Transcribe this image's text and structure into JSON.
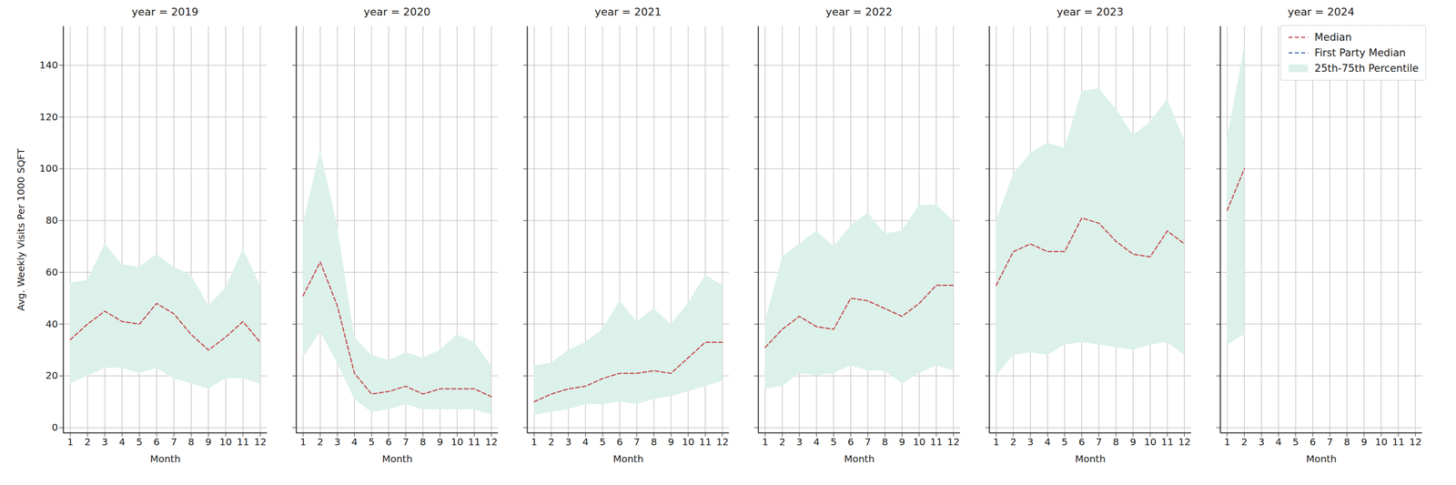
{
  "chart_data": [
    {
      "type": "line",
      "title": "year = 2019",
      "xlabel": "Month",
      "ylabel": "Avg. Weekly Visits Per 1000 SQFT",
      "x": [
        1,
        2,
        3,
        4,
        5,
        6,
        7,
        8,
        9,
        10,
        11,
        12
      ],
      "xlim": [
        0.6,
        12.4
      ],
      "xticks": [
        1,
        2,
        3,
        4,
        5,
        6,
        7,
        8,
        9,
        10,
        11,
        12
      ],
      "ylim": [
        -2,
        155
      ],
      "yticks": [
        0,
        20,
        40,
        60,
        80,
        100,
        120,
        140
      ],
      "grid": true,
      "series": [
        {
          "name": "Median",
          "color": "#c44e52",
          "line_style": "dashed",
          "values": [
            34,
            40,
            45,
            41,
            40,
            48,
            44,
            36,
            30,
            35,
            41,
            33
          ]
        },
        {
          "name": "First Party Median",
          "color": "#4c72b0",
          "line_style": "dashed",
          "values": [
            null,
            null,
            null,
            null,
            null,
            null,
            null,
            null,
            null,
            null,
            null,
            null
          ]
        },
        {
          "name": "25th-75th Percentile",
          "type": "area",
          "color": "#dcf1ea",
          "lower": [
            17,
            20,
            23,
            23,
            21,
            23,
            19,
            17,
            15,
            19,
            19,
            17
          ],
          "upper": [
            56,
            57,
            71,
            63,
            62,
            67,
            62,
            59,
            47,
            54,
            69,
            55
          ]
        }
      ]
    },
    {
      "type": "line",
      "title": "year = 2020",
      "xlabel": "Month",
      "tick_labels": "x",
      "x": [
        1,
        2,
        3,
        4,
        5,
        6,
        7,
        8,
        9,
        10,
        11,
        12
      ],
      "xlim": [
        0.6,
        12.4
      ],
      "xticks": [
        1,
        2,
        3,
        4,
        5,
        6,
        7,
        8,
        9,
        10,
        11,
        12
      ],
      "ylim": [
        -2,
        155
      ],
      "yticks": [
        0,
        20,
        40,
        60,
        80,
        100,
        120,
        140
      ],
      "grid": true,
      "series": [
        {
          "name": "Median",
          "color": "#c44e52",
          "line_style": "dashed",
          "values": [
            51,
            64,
            47,
            21,
            13,
            14,
            16,
            13,
            15,
            15,
            15,
            12
          ]
        },
        {
          "name": "First Party Median",
          "color": "#4c72b0",
          "line_style": "dashed",
          "values": [
            null,
            null,
            null,
            null,
            null,
            null,
            null,
            null,
            null,
            null,
            null,
            null
          ]
        },
        {
          "name": "25th-75th Percentile",
          "type": "area",
          "color": "#dcf1ea",
          "lower": [
            27,
            37,
            25,
            11,
            6,
            7,
            9,
            7,
            7,
            7,
            7,
            5
          ],
          "upper": [
            79,
            107,
            78,
            35,
            28,
            26,
            29,
            27,
            30,
            36,
            33,
            24
          ]
        }
      ]
    },
    {
      "type": "line",
      "title": "year = 2021",
      "xlabel": "Month",
      "tick_labels": "x",
      "x": [
        1,
        2,
        3,
        4,
        5,
        6,
        7,
        8,
        9,
        10,
        11,
        12
      ],
      "xlim": [
        0.6,
        12.4
      ],
      "xticks": [
        1,
        2,
        3,
        4,
        5,
        6,
        7,
        8,
        9,
        10,
        11,
        12
      ],
      "ylim": [
        -2,
        155
      ],
      "yticks": [
        0,
        20,
        40,
        60,
        80,
        100,
        120,
        140
      ],
      "grid": true,
      "series": [
        {
          "name": "Median",
          "color": "#c44e52",
          "line_style": "dashed",
          "values": [
            10,
            13,
            15,
            16,
            19,
            21,
            21,
            22,
            21,
            27,
            33,
            33
          ]
        },
        {
          "name": "First Party Median",
          "color": "#4c72b0",
          "line_style": "dashed",
          "values": [
            null,
            null,
            null,
            null,
            null,
            null,
            null,
            null,
            null,
            null,
            null,
            null
          ]
        },
        {
          "name": "25th-75th Percentile",
          "type": "area",
          "color": "#dcf1ea",
          "lower": [
            5,
            6,
            7,
            9,
            9,
            10,
            9,
            11,
            12,
            14,
            16,
            18
          ],
          "upper": [
            24,
            25,
            30,
            33,
            38,
            49,
            41,
            46,
            40,
            48,
            59,
            55
          ]
        }
      ]
    },
    {
      "type": "line",
      "title": "year = 2022",
      "xlabel": "Month",
      "tick_labels": "x",
      "x": [
        1,
        2,
        3,
        4,
        5,
        6,
        7,
        8,
        9,
        10,
        11,
        12
      ],
      "xlim": [
        0.6,
        12.4
      ],
      "xticks": [
        1,
        2,
        3,
        4,
        5,
        6,
        7,
        8,
        9,
        10,
        11,
        12
      ],
      "ylim": [
        -2,
        155
      ],
      "yticks": [
        0,
        20,
        40,
        60,
        80,
        100,
        120,
        140
      ],
      "grid": true,
      "series": [
        {
          "name": "Median",
          "color": "#c44e52",
          "line_style": "dashed",
          "values": [
            31,
            38,
            43,
            39,
            38,
            50,
            49,
            46,
            43,
            48,
            55,
            55
          ]
        },
        {
          "name": "First Party Median",
          "color": "#4c72b0",
          "line_style": "dashed",
          "values": [
            null,
            null,
            null,
            null,
            null,
            null,
            null,
            null,
            null,
            null,
            null,
            null
          ]
        },
        {
          "name": "25th-75th Percentile",
          "type": "area",
          "color": "#dcf1ea",
          "lower": [
            15,
            16,
            21,
            20,
            21,
            24,
            22,
            22,
            17,
            21,
            24,
            22
          ],
          "upper": [
            41,
            66,
            71,
            76,
            70,
            78,
            83,
            75,
            76,
            86,
            86,
            80
          ]
        }
      ]
    },
    {
      "type": "line",
      "title": "year = 2023",
      "xlabel": "Month",
      "tick_labels": "x",
      "x": [
        1,
        2,
        3,
        4,
        5,
        6,
        7,
        8,
        9,
        10,
        11,
        12
      ],
      "xlim": [
        0.6,
        12.4
      ],
      "xticks": [
        1,
        2,
        3,
        4,
        5,
        6,
        7,
        8,
        9,
        10,
        11,
        12
      ],
      "ylim": [
        -2,
        155
      ],
      "yticks": [
        0,
        20,
        40,
        60,
        80,
        100,
        120,
        140
      ],
      "grid": true,
      "series": [
        {
          "name": "Median",
          "color": "#c44e52",
          "line_style": "dashed",
          "values": [
            55,
            68,
            71,
            68,
            68,
            81,
            79,
            72,
            67,
            66,
            76,
            71
          ]
        },
        {
          "name": "First Party Median",
          "color": "#4c72b0",
          "line_style": "dashed",
          "values": [
            null,
            null,
            null,
            null,
            null,
            null,
            null,
            null,
            null,
            null,
            null,
            null
          ]
        },
        {
          "name": "25th-75th Percentile",
          "type": "area",
          "color": "#dcf1ea",
          "lower": [
            20,
            28,
            29,
            28,
            32,
            33,
            32,
            31,
            30,
            32,
            33,
            28
          ],
          "upper": [
            80,
            98,
            106,
            110,
            108,
            130,
            131,
            123,
            113,
            118,
            127,
            111
          ]
        }
      ]
    },
    {
      "type": "line",
      "title": "year = 2024",
      "xlabel": "Month",
      "tick_labels": "x",
      "legend": "upper right",
      "x": [
        1,
        2,
        3,
        4,
        5,
        6,
        7,
        8,
        9,
        10,
        11,
        12
      ],
      "xlim": [
        0.6,
        12.4
      ],
      "xticks": [
        1,
        2,
        3,
        4,
        5,
        6,
        7,
        8,
        9,
        10,
        11,
        12
      ],
      "ylim": [
        -2,
        155
      ],
      "yticks": [
        0,
        20,
        40,
        60,
        80,
        100,
        120,
        140
      ],
      "grid": true,
      "series": [
        {
          "name": "Median",
          "color": "#c44e52",
          "line_style": "dashed",
          "values": [
            84,
            100,
            null,
            null,
            null,
            null,
            null,
            null,
            null,
            null,
            null,
            null
          ]
        },
        {
          "name": "First Party Median",
          "color": "#4c72b0",
          "line_style": "dashed",
          "values": [
            null,
            null,
            null,
            null,
            null,
            null,
            null,
            null,
            null,
            null,
            null,
            null
          ]
        },
        {
          "name": "25th-75th Percentile",
          "type": "area",
          "color": "#dcf1ea",
          "lower": [
            32,
            36,
            null,
            null,
            null,
            null,
            null,
            null,
            null,
            null,
            null,
            null
          ],
          "upper": [
            112,
            147,
            null,
            null,
            null,
            null,
            null,
            null,
            null,
            null,
            null,
            null
          ]
        }
      ]
    }
  ]
}
